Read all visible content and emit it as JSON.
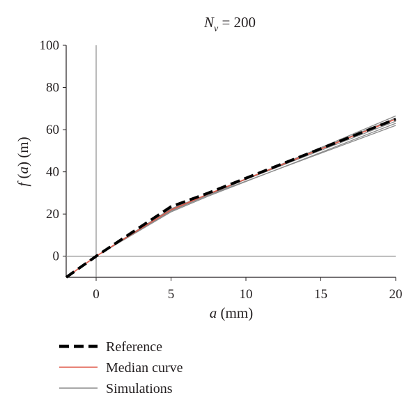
{
  "chart_data": {
    "type": "line",
    "title": {
      "pre": "N",
      "sub": "v",
      "post": " = 200"
    },
    "xlabel": {
      "var": "a",
      "unit": " (mm)"
    },
    "ylabel": {
      "pre": "f",
      "mid": " (",
      "var": "a",
      "post": ") (m)"
    },
    "xlim": [
      -2,
      20
    ],
    "ylim": [
      -10,
      100
    ],
    "xticks": [
      0,
      5,
      10,
      15,
      20
    ],
    "yticks": [
      0,
      20,
      40,
      60,
      80,
      100
    ],
    "grid": false,
    "legend_position": "bottom-left",
    "series": [
      {
        "name": "Simulations",
        "style": "solid",
        "color": "#8c8c8c",
        "curves": [
          {
            "x": [
              -2,
              0,
              5,
              7.5,
              20
            ],
            "y": [
              -10,
              0,
              21.5,
              29,
              66.5
            ]
          },
          {
            "x": [
              -2,
              0,
              5,
              7.5,
              20
            ],
            "y": [
              -10,
              0,
              22,
              29.5,
              65.5
            ]
          },
          {
            "x": [
              -2,
              0,
              5,
              7.5,
              20
            ],
            "y": [
              -10,
              0,
              22.5,
              29.5,
              64
            ]
          },
          {
            "x": [
              -2,
              0,
              5,
              7.5,
              20
            ],
            "y": [
              -10,
              0,
              21,
              28.5,
              63
            ]
          },
          {
            "x": [
              -2,
              0,
              5,
              7.5,
              20
            ],
            "y": [
              -10,
              0,
              21.5,
              29,
              62
            ]
          }
        ]
      },
      {
        "name": "Median curve",
        "style": "solid",
        "color": "#e05a4a",
        "x": [
          -2,
          0,
          5,
          7.5,
          20
        ],
        "y": [
          -10,
          0,
          22,
          29.5,
          65
        ]
      },
      {
        "name": "Reference",
        "style": "dashed",
        "color": "#000000",
        "x": [
          -2,
          0,
          5,
          7.5,
          20
        ],
        "y": [
          -10,
          0,
          23.5,
          30,
          65
        ]
      }
    ],
    "legend": [
      "Reference",
      "Median curve",
      "Simulations"
    ]
  }
}
